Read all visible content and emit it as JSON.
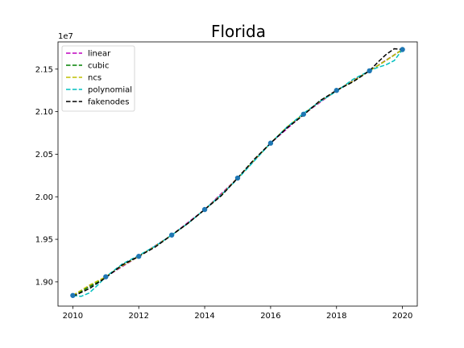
{
  "chart_data": {
    "type": "line",
    "title": "Florida",
    "xlabel": "",
    "ylabel": "",
    "y_offset_label": "1e7",
    "y_scale_factor": 10000000,
    "xlim": [
      2009.55,
      2020.45
    ],
    "ylim": [
      18.715,
      21.82
    ],
    "x_ticks": [
      2010,
      2012,
      2014,
      2016,
      2018,
      2020
    ],
    "x_tick_labels": [
      "2010",
      "2012",
      "2014",
      "2016",
      "2018",
      "2020"
    ],
    "y_ticks": [
      19.0,
      19.5,
      20.0,
      20.5,
      21.0,
      21.5
    ],
    "y_tick_labels": [
      "1.90",
      "1.95",
      "2.00",
      "2.05",
      "2.10",
      "2.15"
    ],
    "grid": false,
    "legend_position": "upper-left",
    "data_points": {
      "name": "data",
      "color": "#1f77b4",
      "x": [
        2010,
        2011,
        2012,
        2013,
        2014,
        2015,
        2016,
        2017,
        2018,
        2019,
        2020
      ],
      "y": [
        18.84,
        19.06,
        19.3,
        19.55,
        19.85,
        20.22,
        20.63,
        20.97,
        21.25,
        21.48,
        21.73
      ]
    },
    "series": [
      {
        "name": "linear",
        "color": "#bf00bf",
        "x": [
          2010,
          2011,
          2012,
          2013,
          2014,
          2015,
          2016,
          2017,
          2018,
          2019,
          2020
        ],
        "y": [
          18.84,
          19.06,
          19.3,
          19.55,
          19.85,
          20.22,
          20.63,
          20.97,
          21.25,
          21.48,
          21.73
        ]
      },
      {
        "name": "cubic",
        "color": "#008000",
        "x": [
          2010,
          2010.5,
          2011,
          2011.5,
          2012,
          2012.5,
          2013,
          2013.5,
          2014,
          2014.5,
          2015,
          2015.5,
          2016,
          2016.5,
          2017,
          2017.5,
          2018,
          2018.5,
          2019,
          2019.5,
          2020
        ],
        "y": [
          18.84,
          18.94,
          19.06,
          19.19,
          19.3,
          19.42,
          19.55,
          19.69,
          19.85,
          20.02,
          20.22,
          20.43,
          20.63,
          20.82,
          20.97,
          21.12,
          21.25,
          21.36,
          21.48,
          21.6,
          21.73
        ]
      },
      {
        "name": "ncs",
        "color": "#bfbf00",
        "x": [
          2010,
          2010.5,
          2011,
          2011.5,
          2012,
          2012.5,
          2013,
          2013.5,
          2014,
          2014.5,
          2015,
          2015.5,
          2016,
          2016.5,
          2017,
          2017.5,
          2018,
          2018.5,
          2019,
          2019.5,
          2020
        ],
        "y": [
          18.84,
          18.96,
          19.06,
          19.19,
          19.3,
          19.42,
          19.55,
          19.69,
          19.85,
          20.02,
          20.22,
          20.43,
          20.63,
          20.82,
          20.97,
          21.12,
          21.25,
          21.36,
          21.48,
          21.6,
          21.73
        ]
      },
      {
        "name": "polynomial",
        "color": "#00bfbf",
        "x": [
          2010,
          2010.25,
          2010.5,
          2010.75,
          2011,
          2011.5,
          2012,
          2012.5,
          2013,
          2013.5,
          2014,
          2014.5,
          2015,
          2015.5,
          2016,
          2016.5,
          2017,
          2017.5,
          2018,
          2018.5,
          2019,
          2019.25,
          2019.5,
          2019.75,
          2020
        ],
        "y": [
          18.84,
          18.83,
          18.87,
          18.96,
          19.06,
          19.21,
          19.31,
          19.42,
          19.55,
          19.69,
          19.85,
          20.02,
          20.21,
          20.42,
          20.63,
          20.82,
          20.98,
          21.12,
          21.24,
          21.38,
          21.48,
          21.52,
          21.55,
          21.6,
          21.73
        ]
      },
      {
        "name": "fakenodes",
        "color": "#000000",
        "x": [
          2010,
          2010.5,
          2011,
          2011.5,
          2012,
          2012.5,
          2013,
          2013.5,
          2014,
          2014.5,
          2015,
          2015.5,
          2016,
          2016.5,
          2017,
          2017.5,
          2018,
          2018.5,
          2019,
          2019.25,
          2019.5,
          2019.75,
          2020
        ],
        "y": [
          18.83,
          18.92,
          19.05,
          19.2,
          19.3,
          19.41,
          19.55,
          19.69,
          19.85,
          20.01,
          20.22,
          20.44,
          20.63,
          20.81,
          20.96,
          21.13,
          21.25,
          21.35,
          21.48,
          21.58,
          21.67,
          21.74,
          21.73
        ]
      }
    ]
  }
}
